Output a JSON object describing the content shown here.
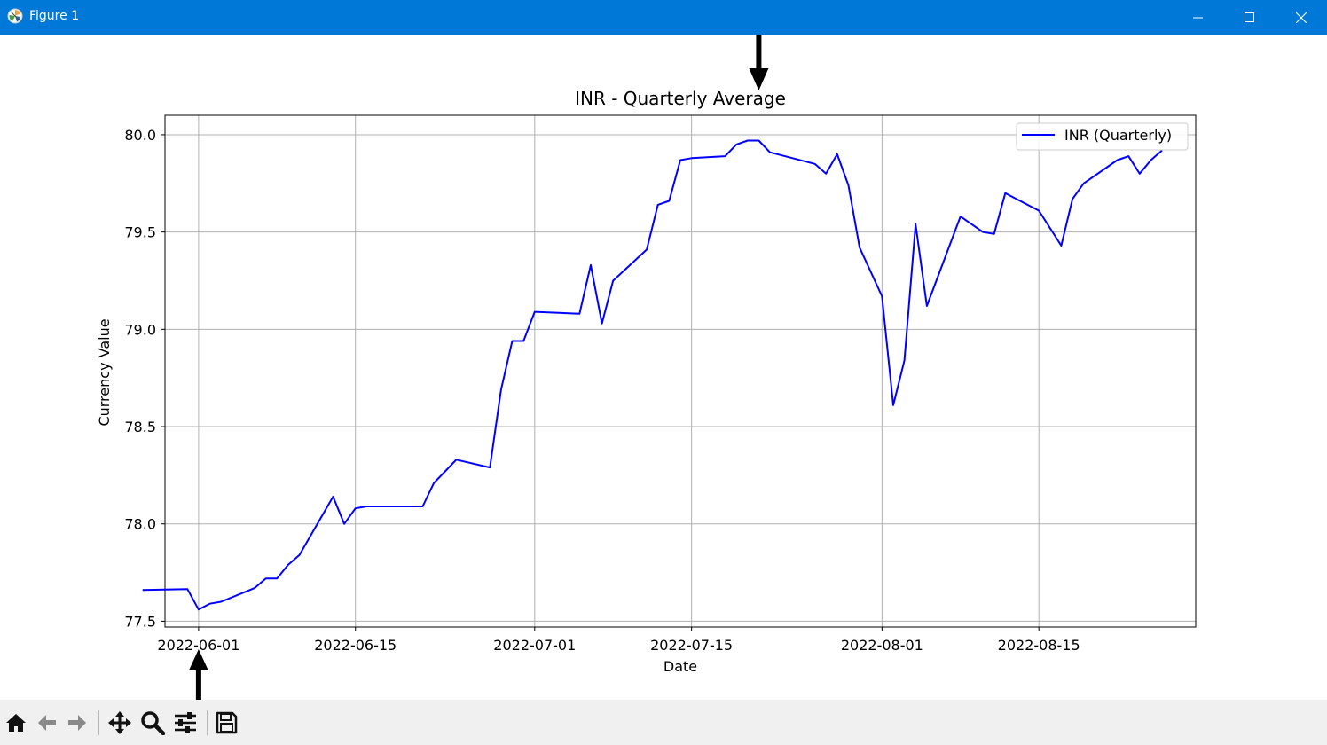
{
  "window": {
    "title": "Figure 1",
    "app_icon": "matplotlib-icon",
    "controls": [
      "minimize-icon",
      "maximize-icon",
      "close-icon"
    ],
    "titlebar_color": "#0078d7"
  },
  "toolbar": {
    "buttons": [
      "home-icon",
      "back-icon",
      "forward-icon",
      "pan-icon",
      "zoom-icon",
      "configure-subplots-icon",
      "save-icon"
    ]
  },
  "chart_data": {
    "type": "line",
    "title": "INR - Quarterly Average",
    "xlabel": "Date",
    "ylabel": "Currency Value",
    "x_tick_labels": [
      "2022-06-01",
      "2022-06-15",
      "2022-07-01",
      "2022-07-15",
      "2022-08-01",
      "2022-08-15"
    ],
    "y_tick_labels": [
      "77.5",
      "78.0",
      "78.5",
      "79.0",
      "79.5",
      "80.0"
    ],
    "xlim": [
      "2022-05-29",
      "2022-08-29"
    ],
    "ylim": [
      77.47,
      80.1
    ],
    "grid": true,
    "legend_location": "upper right",
    "series": [
      {
        "name": "INR (Quarterly)",
        "color": "#0000ff",
        "x": [
          "2022-05-27",
          "2022-05-31",
          "2022-06-01",
          "2022-06-02",
          "2022-06-03",
          "2022-06-06",
          "2022-06-07",
          "2022-06-08",
          "2022-06-09",
          "2022-06-10",
          "2022-06-13",
          "2022-06-14",
          "2022-06-15",
          "2022-06-16",
          "2022-06-17",
          "2022-06-21",
          "2022-06-22",
          "2022-06-23",
          "2022-06-24",
          "2022-06-27",
          "2022-06-28",
          "2022-06-29",
          "2022-06-30",
          "2022-07-01",
          "2022-07-05",
          "2022-07-06",
          "2022-07-07",
          "2022-07-08",
          "2022-07-11",
          "2022-07-12",
          "2022-07-13",
          "2022-07-14",
          "2022-07-15",
          "2022-07-18",
          "2022-07-19",
          "2022-07-20",
          "2022-07-21",
          "2022-07-22",
          "2022-07-26",
          "2022-07-27",
          "2022-07-28",
          "2022-07-29",
          "2022-07-30",
          "2022-08-01",
          "2022-08-02",
          "2022-08-03",
          "2022-08-04",
          "2022-08-05",
          "2022-08-08",
          "2022-08-10",
          "2022-08-11",
          "2022-08-12",
          "2022-08-15",
          "2022-08-17",
          "2022-08-18",
          "2022-08-19",
          "2022-08-22",
          "2022-08-23",
          "2022-08-24",
          "2022-08-25",
          "2022-08-26"
        ],
        "y": [
          77.66,
          77.665,
          77.56,
          77.59,
          77.6,
          77.67,
          77.72,
          77.72,
          77.79,
          77.84,
          78.14,
          78.0,
          78.08,
          78.09,
          78.09,
          78.09,
          78.21,
          78.27,
          78.33,
          78.29,
          78.69,
          78.94,
          78.94,
          79.09,
          79.08,
          79.33,
          79.03,
          79.25,
          79.41,
          79.64,
          79.66,
          79.87,
          79.88,
          79.89,
          79.95,
          79.97,
          79.97,
          79.91,
          79.85,
          79.8,
          79.9,
          79.74,
          79.42,
          79.17,
          78.61,
          78.84,
          79.54,
          79.12,
          79.58,
          79.5,
          79.49,
          79.7,
          79.61,
          79.43,
          79.67,
          79.75,
          79.87,
          79.89,
          79.8,
          79.87,
          79.92
        ]
      }
    ],
    "annotations": [
      {
        "type": "arrow",
        "direction": "down",
        "at_x": "2022-07-21"
      },
      {
        "type": "arrow",
        "direction": "up",
        "at_x": "2022-06-01"
      }
    ]
  }
}
